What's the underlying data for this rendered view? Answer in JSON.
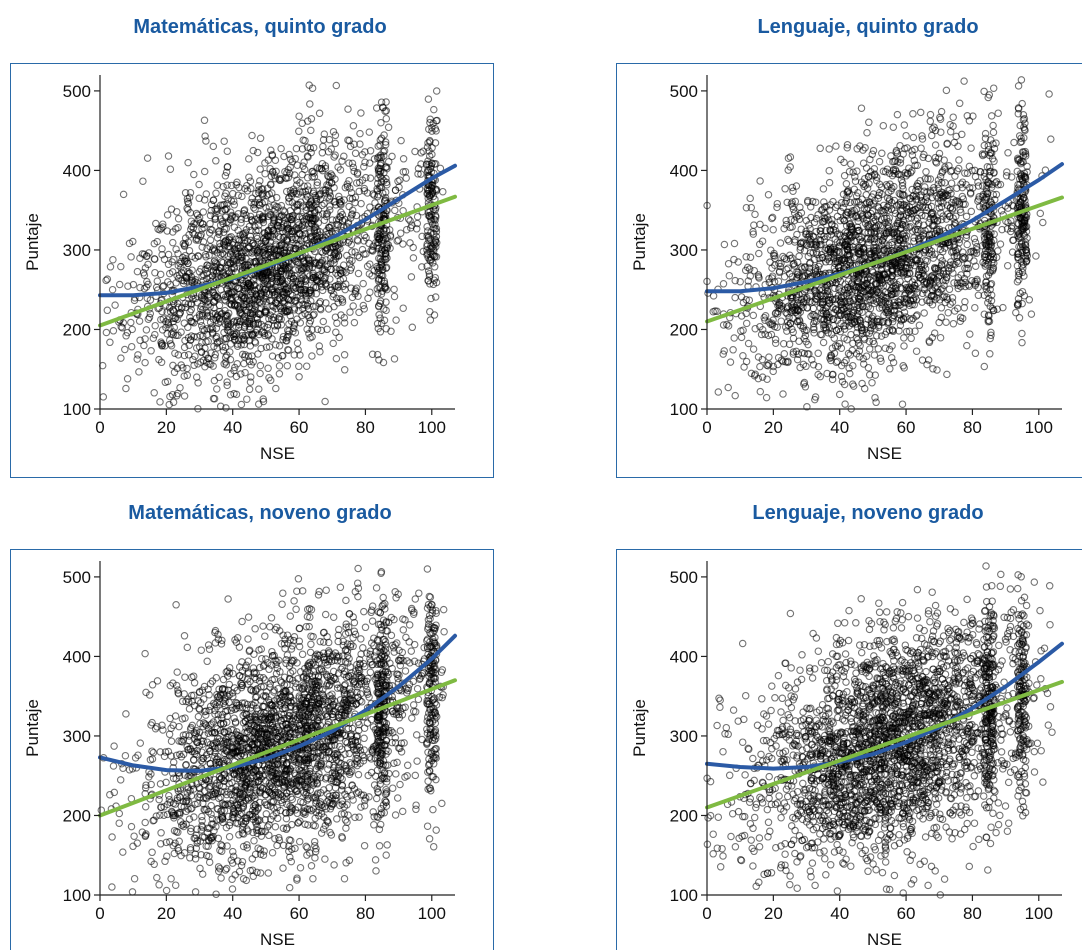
{
  "colors": {
    "title": "#1a5aa0",
    "frame": "#2a6aa8",
    "quadratic_fit": "#2b5aa5",
    "linear_fit": "#7fba42",
    "points": "#000000"
  },
  "chart_data": [
    {
      "type": "scatter",
      "title": "Matemáticas, quinto grado",
      "xlabel": "NSE",
      "ylabel": "Puntaje",
      "xlim": [
        0,
        107
      ],
      "ylim": [
        100,
        520
      ],
      "xticks": [
        "0",
        "20",
        "40",
        "60",
        "80",
        "100"
      ],
      "yticks": [
        "100",
        "200",
        "300",
        "400",
        "500"
      ],
      "points": {
        "n": 2600,
        "x_center": 50,
        "x_spread": 20,
        "y_center": 270,
        "y_spread": 65,
        "dense_columns": [
          85,
          100
        ],
        "seed": 11
      },
      "fits": [
        {
          "name": "quadratic",
          "points": [
            [
              0,
              243
            ],
            [
              10,
              243
            ],
            [
              20,
              246
            ],
            [
              30,
              254
            ],
            [
              40,
              264
            ],
            [
              50,
              279
            ],
            [
              60,
              295
            ],
            [
              70,
              315
            ],
            [
              80,
              338
            ],
            [
              90,
              364
            ],
            [
              100,
              390
            ],
            [
              107,
              406
            ]
          ]
        },
        {
          "name": "linear",
          "points": [
            [
              0,
              205
            ],
            [
              107,
              367
            ]
          ]
        }
      ]
    },
    {
      "type": "scatter",
      "title": "Lenguaje, quinto grado",
      "xlabel": "NSE",
      "ylabel": "Puntaje",
      "xlim": [
        0,
        107
      ],
      "ylim": [
        100,
        520
      ],
      "xticks": [
        "0",
        "20",
        "40",
        "60",
        "80",
        "100"
      ],
      "yticks": [
        "100",
        "200",
        "300",
        "400",
        "500"
      ],
      "points": {
        "n": 2600,
        "x_center": 50,
        "x_spread": 20,
        "y_center": 275,
        "y_spread": 65,
        "dense_columns": [
          85,
          95
        ],
        "seed": 23
      },
      "fits": [
        {
          "name": "quadratic",
          "points": [
            [
              0,
              248
            ],
            [
              10,
              248
            ],
            [
              20,
              252
            ],
            [
              30,
              260
            ],
            [
              40,
              270
            ],
            [
              50,
              283
            ],
            [
              60,
              298
            ],
            [
              70,
              316
            ],
            [
              80,
              337
            ],
            [
              90,
              362
            ],
            [
              100,
              388
            ],
            [
              107,
              408
            ]
          ]
        },
        {
          "name": "linear",
          "points": [
            [
              0,
              210
            ],
            [
              107,
              366
            ]
          ]
        }
      ]
    },
    {
      "type": "scatter",
      "title": "Matemáticas, noveno grado",
      "xlabel": "NSE",
      "ylabel": "Puntaje",
      "xlim": [
        0,
        107
      ],
      "ylim": [
        100,
        520
      ],
      "xticks": [
        "0",
        "20",
        "40",
        "60",
        "80",
        "100"
      ],
      "yticks": [
        "100",
        "200",
        "300",
        "400",
        "500"
      ],
      "points": {
        "n": 3000,
        "x_center": 55,
        "x_spread": 20,
        "y_center": 280,
        "y_spread": 70,
        "dense_columns": [
          85,
          100
        ],
        "seed": 37
      },
      "fits": [
        {
          "name": "quadratic",
          "points": [
            [
              0,
              273
            ],
            [
              10,
              263
            ],
            [
              20,
              257
            ],
            [
              30,
              256
            ],
            [
              40,
              261
            ],
            [
              50,
              271
            ],
            [
              60,
              287
            ],
            [
              70,
              306
            ],
            [
              80,
              332
            ],
            [
              90,
              362
            ],
            [
              100,
              397
            ],
            [
              107,
              426
            ]
          ]
        },
        {
          "name": "linear",
          "points": [
            [
              0,
              200
            ],
            [
              107,
              370
            ]
          ]
        }
      ]
    },
    {
      "type": "scatter",
      "title": "Lenguaje, noveno grado",
      "xlabel": "NSE",
      "ylabel": "Puntaje",
      "xlim": [
        0,
        107
      ],
      "ylim": [
        100,
        520
      ],
      "xticks": [
        "0",
        "20",
        "40",
        "60",
        "80",
        "100"
      ],
      "yticks": [
        "100",
        "200",
        "300",
        "400",
        "500"
      ],
      "points": {
        "n": 3000,
        "x_center": 55,
        "x_spread": 20,
        "y_center": 285,
        "y_spread": 70,
        "dense_columns": [
          85,
          95
        ],
        "seed": 53
      },
      "fits": [
        {
          "name": "quadratic",
          "points": [
            [
              0,
              265
            ],
            [
              10,
              261
            ],
            [
              20,
              259
            ],
            [
              30,
              261
            ],
            [
              40,
              267
            ],
            [
              50,
              277
            ],
            [
              60,
              292
            ],
            [
              70,
              311
            ],
            [
              80,
              335
            ],
            [
              90,
              362
            ],
            [
              100,
              393
            ],
            [
              107,
              416
            ]
          ]
        },
        {
          "name": "linear",
          "points": [
            [
              0,
              210
            ],
            [
              107,
              368
            ]
          ]
        }
      ]
    }
  ]
}
